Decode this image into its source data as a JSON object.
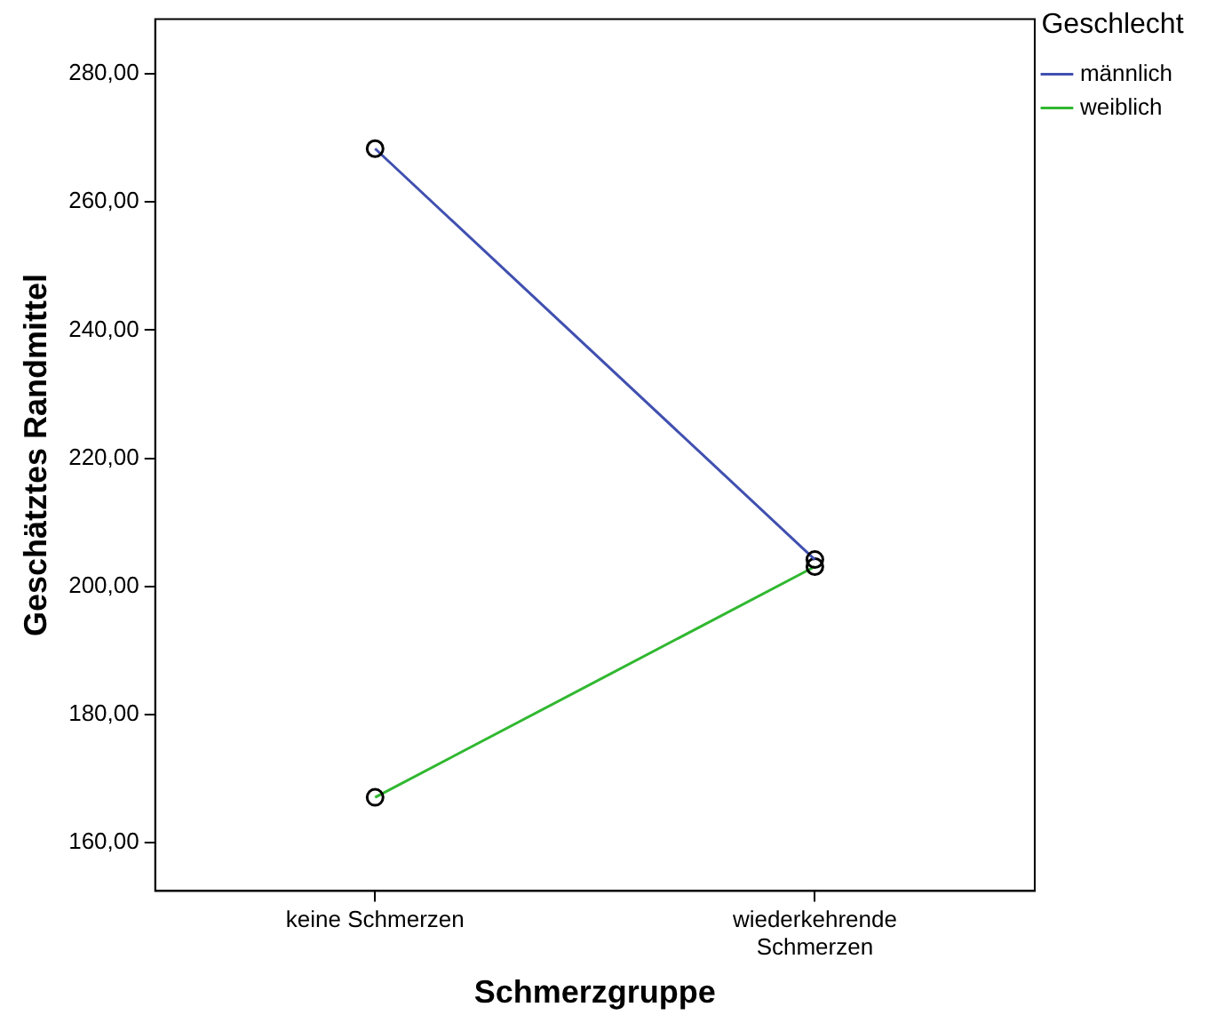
{
  "chart_data": {
    "type": "line",
    "xlabel": "Schmerzgruppe",
    "ylabel": "Geschätztes Randmittel",
    "legend_title": "Geschlecht",
    "categories": [
      "keine Schmerzen",
      "wiederkehrende Schmerzen"
    ],
    "series": [
      {
        "name": "männlich",
        "color": "#4050b0",
        "values": [
          268.3,
          204.2
        ]
      },
      {
        "name": "weiblich",
        "color": "#30b830",
        "values": [
          167.1,
          203.1
        ]
      }
    ],
    "ylim": [
      152.5,
      288.5
    ],
    "yticks": [
      {
        "value": 160,
        "label": "160,00"
      },
      {
        "value": 180,
        "label": "180,00"
      },
      {
        "value": 200,
        "label": "200,00"
      },
      {
        "value": 220,
        "label": "220,00"
      },
      {
        "value": 240,
        "label": "240,00"
      },
      {
        "value": 260,
        "label": "260,00"
      },
      {
        "value": 280,
        "label": "280,00"
      }
    ],
    "grid": false,
    "legend": "top right",
    "marker": "circle",
    "line_style": "solid"
  }
}
